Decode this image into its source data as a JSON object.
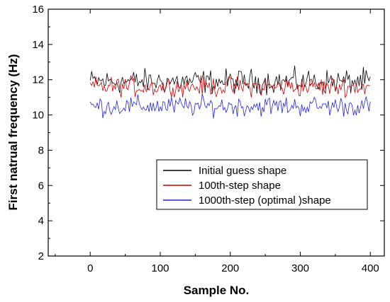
{
  "chart_data": {
    "type": "line",
    "title": "",
    "xlabel": "Sample No.",
    "ylabel": "First natrual frequency (Hz)",
    "xlim": [
      -60,
      420
    ],
    "ylim": [
      2,
      16
    ],
    "x_ticks": [
      0,
      100,
      200,
      300,
      400
    ],
    "y_ticks": [
      2,
      4,
      6,
      8,
      10,
      12,
      14,
      16
    ],
    "x_tick_labels": [
      "0",
      "100",
      "200",
      "300",
      "400"
    ],
    "y_tick_labels": [
      "2",
      "4",
      "6",
      "8",
      "10",
      "12",
      "14",
      "16"
    ],
    "grid": false,
    "legend": {
      "position": "center-right"
    },
    "x_range": [
      0,
      400
    ],
    "series": [
      {
        "name": "Initial guess shape",
        "color": "#000000",
        "mean": 11.9,
        "min": 11.1,
        "max": 12.8
      },
      {
        "name": "100th-step shape",
        "color": "#cc0000",
        "mean": 11.6,
        "min": 11.0,
        "max": 12.4
      },
      {
        "name": "1000th-step (optimal )shape",
        "color": "#2222dd",
        "mean": 10.5,
        "min": 9.8,
        "max": 11.2
      }
    ]
  }
}
